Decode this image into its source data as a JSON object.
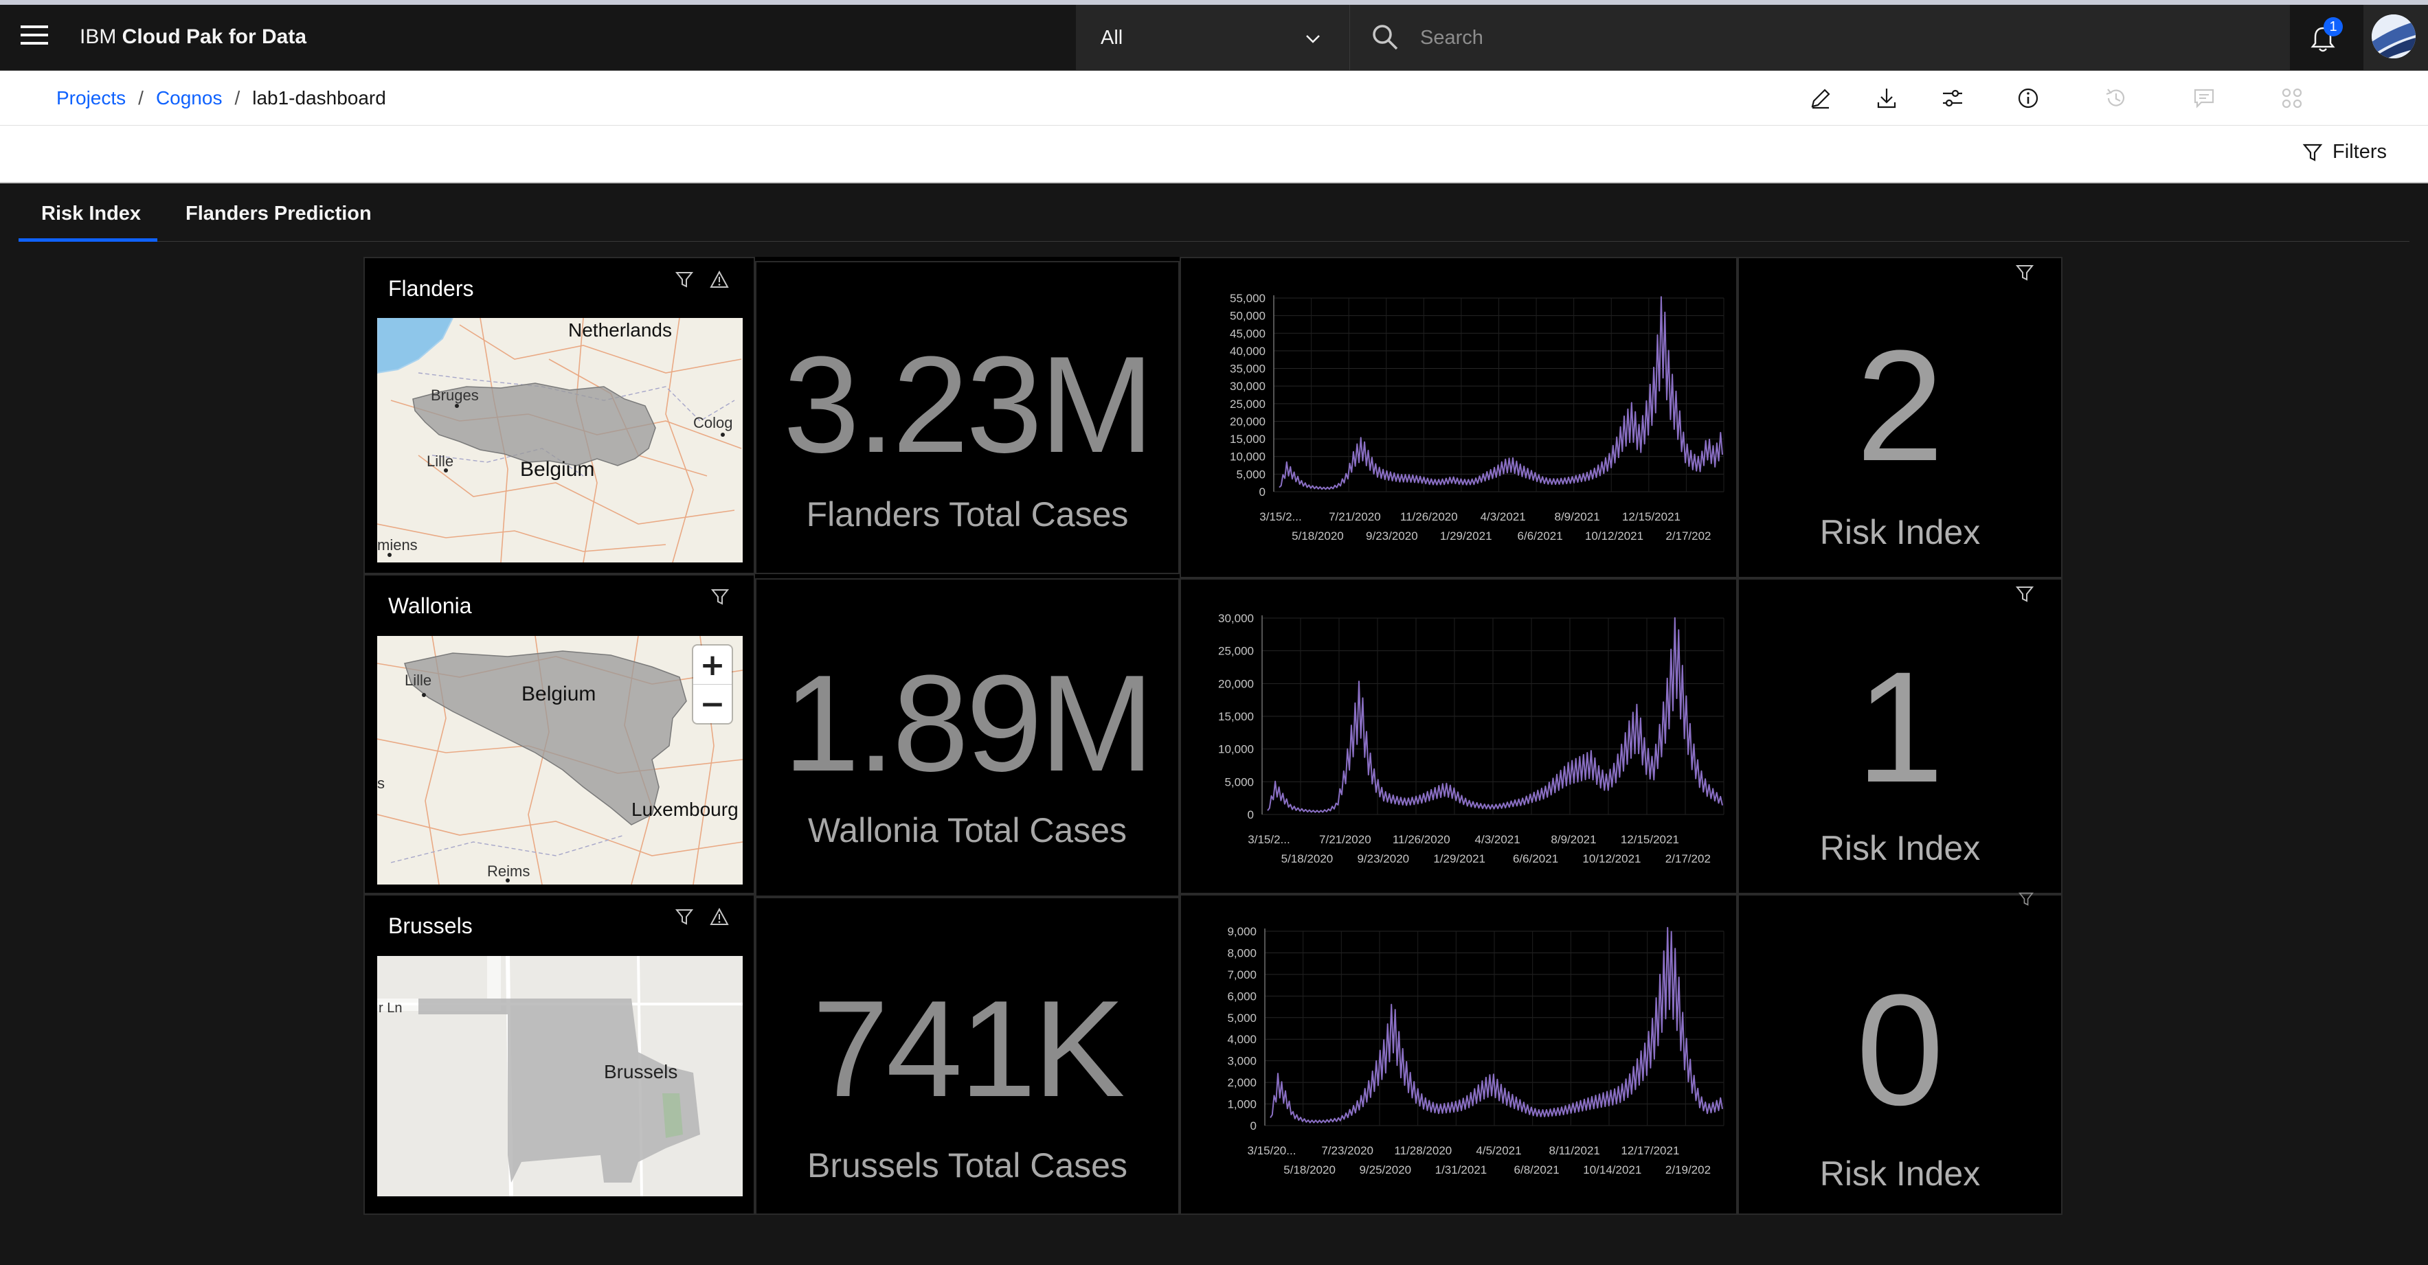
{
  "app": {
    "brand_prefix": "IBM ",
    "brand_name": "Cloud Pak for Data",
    "scope_value": "All",
    "search_placeholder": "Search",
    "notification_count": "1"
  },
  "breadcrumb": {
    "items": [
      "Projects",
      "Cognos"
    ],
    "current": "lab1-dashboard"
  },
  "toolbar": {
    "icons": [
      "edit-icon",
      "download-icon",
      "settings-adjust-icon",
      "information-icon",
      "history-icon",
      "comment-icon",
      "apps-icon"
    ],
    "filters_label": "Filters"
  },
  "tabs": [
    {
      "label": "Risk Index",
      "active": true
    },
    {
      "label": "Flanders Prediction",
      "active": false
    }
  ],
  "maps": [
    {
      "title": "Flanders",
      "labels": [
        "Netherlands",
        "Bruges",
        "Colog",
        "Lille",
        "Belgium",
        "miens"
      ]
    },
    {
      "title": "Wallonia",
      "labels": [
        "Lille",
        "Belgium",
        "Luxembourg",
        "s",
        "Reims"
      ]
    },
    {
      "title": "Brussels",
      "labels": [
        "r Ln",
        "Brussels"
      ]
    }
  ],
  "kpis": [
    {
      "value": "3.23M",
      "label": "Flanders Total Cases"
    },
    {
      "value": "1.89M",
      "label": "Wallonia Total Cases"
    },
    {
      "value": "741K",
      "label": "Brussels Total Cases"
    }
  ],
  "risk": [
    {
      "value": "2",
      "label": "Risk Index"
    },
    {
      "value": "1",
      "label": "Risk Index"
    },
    {
      "value": "0",
      "label": "Risk Index"
    }
  ],
  "colors": {
    "series": "#8a6fc4",
    "accent": "#0f62fe"
  },
  "chart_data": [
    {
      "type": "line",
      "ylim": [
        0,
        55000
      ],
      "yticks": [
        "55,000",
        "50,000",
        "45,000",
        "40,000",
        "35,000",
        "30,000",
        "25,000",
        "20,000",
        "15,000",
        "10,000",
        "5,000",
        "0"
      ],
      "xticks_top": [
        "3/15/2...",
        "7/21/2020",
        "11/26/2020",
        "4/3/2021",
        "8/9/2021",
        "12/15/2021"
      ],
      "xticks_bottom": [
        "5/18/2020",
        "9/23/2020",
        "1/29/2021",
        "6/6/2021",
        "10/12/2021",
        "2/17/202"
      ],
      "series": [
        {
          "values": [
            1000,
            7000,
            4500,
            2500,
            1500,
            1200,
            1000,
            1100,
            2000,
            4500,
            10000,
            13000,
            9000,
            6000,
            5000,
            4500,
            4000,
            4000,
            3800,
            3500,
            3000,
            2800,
            3000,
            3500,
            3000,
            2800,
            3000,
            4000,
            5000,
            6000,
            7500,
            8000,
            6500,
            5500,
            4500,
            3500,
            3000,
            3000,
            3200,
            3500,
            4000,
            4500,
            5500,
            7000,
            9000,
            13000,
            18000,
            21000,
            15000,
            22000,
            30000,
            48000,
            30000,
            22000,
            12000,
            9000,
            8000,
            13000,
            10000,
            15000
          ]
        }
      ]
    },
    {
      "type": "line",
      "ylim": [
        0,
        30000
      ],
      "yticks": [
        "30,000",
        "25,000",
        "20,000",
        "15,000",
        "10,000",
        "5,000",
        "0"
      ],
      "xticks_top": [
        "3/15/2...",
        "7/21/2020",
        "11/26/2020",
        "4/3/2021",
        "8/9/2021",
        "12/15/2021"
      ],
      "xticks_bottom": [
        "5/18/2020",
        "9/23/2020",
        "1/29/2021",
        "6/6/2021",
        "10/12/2021",
        "2/17/202"
      ],
      "series": [
        {
          "values": [
            500,
            4200,
            2600,
            1200,
            800,
            600,
            500,
            500,
            700,
            1500,
            6000,
            12000,
            17500,
            9000,
            5000,
            3000,
            2500,
            2200,
            2000,
            2200,
            2500,
            3000,
            3500,
            4000,
            3500,
            2500,
            1800,
            1500,
            1300,
            1200,
            1300,
            1500,
            1800,
            2000,
            2500,
            3000,
            3500,
            4500,
            5500,
            6500,
            7000,
            7500,
            8000,
            6000,
            5000,
            6500,
            9000,
            12000,
            14000,
            9000,
            7000,
            12000,
            18000,
            26000,
            17000,
            10000,
            6000,
            4000,
            3000,
            2000
          ]
        }
      ]
    },
    {
      "type": "line",
      "ylim": [
        0,
        9000
      ],
      "yticks": [
        "9,000",
        "8,000",
        "7,000",
        "6,000",
        "5,000",
        "4,000",
        "3,000",
        "2,000",
        "1,000",
        "0"
      ],
      "xticks_top": [
        "3/15/20...",
        "7/23/2020",
        "11/28/2020",
        "4/5/2021",
        "8/11/2021",
        "12/17/2021"
      ],
      "xticks_bottom": [
        "5/18/2020",
        "9/25/2020",
        "1/31/2021",
        "6/8/2021",
        "10/14/2021",
        "2/19/202"
      ],
      "series": [
        {
          "values": [
            300,
            2000,
            1300,
            500,
            300,
            200,
            200,
            200,
            250,
            300,
            500,
            800,
            1200,
            1800,
            2600,
            3400,
            4900,
            3200,
            2200,
            1500,
            1100,
            900,
            800,
            850,
            900,
            1000,
            1200,
            1500,
            1800,
            2000,
            1600,
            1300,
            1100,
            900,
            700,
            600,
            600,
            650,
            700,
            800,
            900,
            1000,
            1100,
            1200,
            1300,
            1400,
            1600,
            2000,
            2600,
            3200,
            4200,
            6000,
            7800,
            6500,
            3800,
            2200,
            1200,
            800,
            900,
            1100
          ]
        }
      ]
    }
  ]
}
